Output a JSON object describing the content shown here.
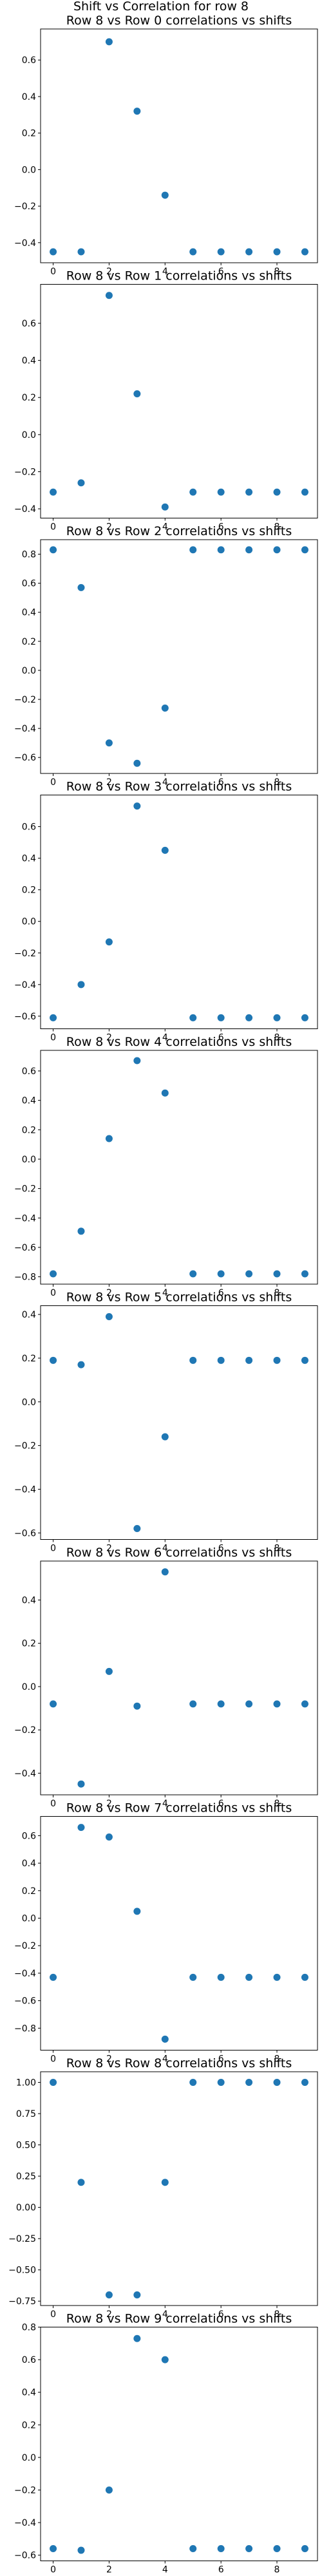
{
  "figure": {
    "title": "Shift vs Correlation for row 8",
    "point_color": "#1f77b4"
  },
  "chart_data": [
    {
      "type": "scatter",
      "title": "Row 8 vs Row 0 correlations vs shifts",
      "xlabel": "",
      "ylabel": "",
      "x": [
        0,
        1,
        2,
        3,
        4,
        5,
        6,
        7,
        8,
        9
      ],
      "y": [
        -0.45,
        -0.45,
        0.7,
        0.32,
        -0.14,
        -0.45,
        -0.45,
        -0.45,
        -0.45,
        -0.45
      ],
      "xlim": [
        -0.45,
        9.45
      ],
      "ylim": [
        -0.51,
        0.77
      ],
      "xticks": [
        0,
        2,
        4,
        6,
        8
      ],
      "yticks": [
        -0.4,
        -0.2,
        0.0,
        0.2,
        0.4,
        0.6
      ],
      "ytick_labels": [
        "−0.4",
        "−0.2",
        "0.0",
        "0.2",
        "0.4",
        "0.6"
      ],
      "grid": false,
      "legend": null
    },
    {
      "type": "scatter",
      "title": "Row 8 vs Row 1 correlations vs shifts",
      "xlabel": "",
      "ylabel": "",
      "x": [
        0,
        1,
        2,
        3,
        4,
        5,
        6,
        7,
        8,
        9
      ],
      "y": [
        -0.31,
        -0.26,
        0.75,
        0.22,
        -0.39,
        -0.31,
        -0.31,
        -0.31,
        -0.31,
        -0.31
      ],
      "xlim": [
        -0.45,
        9.45
      ],
      "ylim": [
        -0.45,
        0.81
      ],
      "xticks": [
        0,
        2,
        4,
        6,
        8
      ],
      "yticks": [
        -0.4,
        -0.2,
        0.0,
        0.2,
        0.4,
        0.6
      ],
      "ytick_labels": [
        "−0.4",
        "−0.2",
        "0.0",
        "0.2",
        "0.4",
        "0.6"
      ],
      "grid": false,
      "legend": null
    },
    {
      "type": "scatter",
      "title": "Row 8 vs Row 2 correlations vs shifts",
      "xlabel": "",
      "ylabel": "",
      "x": [
        0,
        1,
        2,
        3,
        4,
        5,
        6,
        7,
        8,
        9
      ],
      "y": [
        0.83,
        0.57,
        -0.5,
        -0.64,
        -0.26,
        0.83,
        0.83,
        0.83,
        0.83,
        0.83
      ],
      "xlim": [
        -0.45,
        9.45
      ],
      "ylim": [
        -0.71,
        0.9
      ],
      "xticks": [
        0,
        2,
        4,
        6,
        8
      ],
      "yticks": [
        -0.6,
        -0.4,
        -0.2,
        0.0,
        0.2,
        0.4,
        0.6,
        0.8
      ],
      "ytick_labels": [
        "−0.6",
        "−0.4",
        "−0.2",
        "0.0",
        "0.2",
        "0.4",
        "0.6",
        "0.8"
      ],
      "grid": false,
      "legend": null
    },
    {
      "type": "scatter",
      "title": "Row 8 vs Row 3 correlations vs shifts",
      "xlabel": "",
      "ylabel": "",
      "x": [
        0,
        1,
        2,
        3,
        4,
        5,
        6,
        7,
        8,
        9
      ],
      "y": [
        -0.61,
        -0.4,
        -0.13,
        0.73,
        0.45,
        -0.61,
        -0.61,
        -0.61,
        -0.61,
        -0.61
      ],
      "xlim": [
        -0.45,
        9.45
      ],
      "ylim": [
        -0.68,
        0.8
      ],
      "xticks": [
        0,
        2,
        4,
        6,
        8
      ],
      "yticks": [
        -0.6,
        -0.4,
        -0.2,
        0.0,
        0.2,
        0.4,
        0.6
      ],
      "ytick_labels": [
        "−0.6",
        "−0.4",
        "−0.2",
        "0.0",
        "0.2",
        "0.4",
        "0.6"
      ],
      "grid": false,
      "legend": null
    },
    {
      "type": "scatter",
      "title": "Row 8 vs Row 4 correlations vs shifts",
      "xlabel": "",
      "ylabel": "",
      "x": [
        0,
        1,
        2,
        3,
        4,
        5,
        6,
        7,
        8,
        9
      ],
      "y": [
        -0.78,
        -0.49,
        0.14,
        0.67,
        0.45,
        -0.78,
        -0.78,
        -0.78,
        -0.78,
        -0.78
      ],
      "xlim": [
        -0.45,
        9.45
      ],
      "ylim": [
        -0.85,
        0.74
      ],
      "xticks": [
        0,
        2,
        4,
        6,
        8
      ],
      "yticks": [
        -0.8,
        -0.6,
        -0.4,
        -0.2,
        0.0,
        0.2,
        0.4,
        0.6
      ],
      "ytick_labels": [
        "−0.8",
        "−0.6",
        "−0.4",
        "−0.2",
        "0.0",
        "0.2",
        "0.4",
        "0.6"
      ],
      "grid": false,
      "legend": null
    },
    {
      "type": "scatter",
      "title": "Row 8 vs Row 5 correlations vs shifts",
      "xlabel": "",
      "ylabel": "",
      "x": [
        0,
        1,
        2,
        3,
        4,
        5,
        6,
        7,
        8,
        9
      ],
      "y": [
        0.19,
        0.17,
        0.39,
        -0.58,
        -0.16,
        0.19,
        0.19,
        0.19,
        0.19,
        0.19
      ],
      "xlim": [
        -0.45,
        9.45
      ],
      "ylim": [
        -0.63,
        0.44
      ],
      "xticks": [
        0,
        2,
        4,
        6,
        8
      ],
      "yticks": [
        -0.6,
        -0.4,
        -0.2,
        0.0,
        0.2,
        0.4
      ],
      "ytick_labels": [
        "−0.6",
        "−0.4",
        "−0.2",
        "0.0",
        "0.2",
        "0.4"
      ],
      "grid": false,
      "legend": null
    },
    {
      "type": "scatter",
      "title": "Row 8 vs Row 6 correlations vs shifts",
      "xlabel": "",
      "ylabel": "",
      "x": [
        0,
        1,
        2,
        3,
        4,
        5,
        6,
        7,
        8,
        9
      ],
      "y": [
        -0.08,
        -0.45,
        0.07,
        -0.09,
        0.53,
        -0.08,
        -0.08,
        -0.08,
        -0.08,
        -0.08
      ],
      "xlim": [
        -0.45,
        9.45
      ],
      "ylim": [
        -0.5,
        0.58
      ],
      "xticks": [
        0,
        2,
        4,
        6,
        8
      ],
      "yticks": [
        -0.4,
        -0.2,
        0.0,
        0.2,
        0.4
      ],
      "ytick_labels": [
        "−0.4",
        "−0.2",
        "0.0",
        "0.2",
        "0.4"
      ],
      "grid": false,
      "legend": null
    },
    {
      "type": "scatter",
      "title": "Row 8 vs Row 7 correlations vs shifts",
      "xlabel": "",
      "ylabel": "",
      "x": [
        0,
        1,
        2,
        3,
        4,
        5,
        6,
        7,
        8,
        9
      ],
      "y": [
        -0.43,
        0.66,
        0.59,
        0.05,
        -0.88,
        -0.43,
        -0.43,
        -0.43,
        -0.43,
        -0.43
      ],
      "xlim": [
        -0.45,
        9.45
      ],
      "ylim": [
        -0.96,
        0.74
      ],
      "xticks": [
        0,
        2,
        4,
        6,
        8
      ],
      "yticks": [
        -0.8,
        -0.6,
        -0.4,
        -0.2,
        0.0,
        0.2,
        0.4,
        0.6
      ],
      "ytick_labels": [
        "−0.8",
        "−0.6",
        "−0.4",
        "−0.2",
        "0.0",
        "0.2",
        "0.4",
        "0.6"
      ],
      "grid": false,
      "legend": null
    },
    {
      "type": "scatter",
      "title": "Row 8 vs Row 8 correlations vs shifts",
      "xlabel": "",
      "ylabel": "",
      "x": [
        0,
        1,
        2,
        3,
        4,
        5,
        6,
        7,
        8,
        9
      ],
      "y": [
        1.0,
        0.2,
        -0.7,
        -0.7,
        0.2,
        1.0,
        1.0,
        1.0,
        1.0,
        1.0
      ],
      "xlim": [
        -0.45,
        9.45
      ],
      "ylim": [
        -0.785,
        1.085
      ],
      "xticks": [
        0,
        2,
        4,
        6,
        8
      ],
      "yticks": [
        -0.75,
        -0.5,
        -0.25,
        0.0,
        0.25,
        0.5,
        0.75,
        1.0
      ],
      "ytick_labels": [
        "−0.75",
        "−0.50",
        "−0.25",
        "0.00",
        "0.25",
        "0.50",
        "0.75",
        "1.00"
      ],
      "grid": false,
      "legend": null
    },
    {
      "type": "scatter",
      "title": "Row 8 vs Row 9 correlations vs shifts",
      "xlabel": "",
      "ylabel": "",
      "x": [
        0,
        1,
        2,
        3,
        4,
        5,
        6,
        7,
        8,
        9
      ],
      "y": [
        -0.56,
        -0.57,
        -0.2,
        0.73,
        0.6,
        -0.56,
        -0.56,
        -0.56,
        -0.56,
        -0.56
      ],
      "xlim": [
        -0.45,
        9.45
      ],
      "ylim": [
        -0.635,
        0.8
      ],
      "xticks": [
        0,
        2,
        4,
        6,
        8
      ],
      "yticks": [
        -0.6,
        -0.4,
        -0.2,
        0.0,
        0.2,
        0.4,
        0.6,
        0.8
      ],
      "ytick_labels": [
        "−0.6",
        "−0.4",
        "−0.2",
        "0.0",
        "0.2",
        "0.4",
        "0.6",
        "0.8"
      ],
      "grid": false,
      "legend": null
    }
  ]
}
